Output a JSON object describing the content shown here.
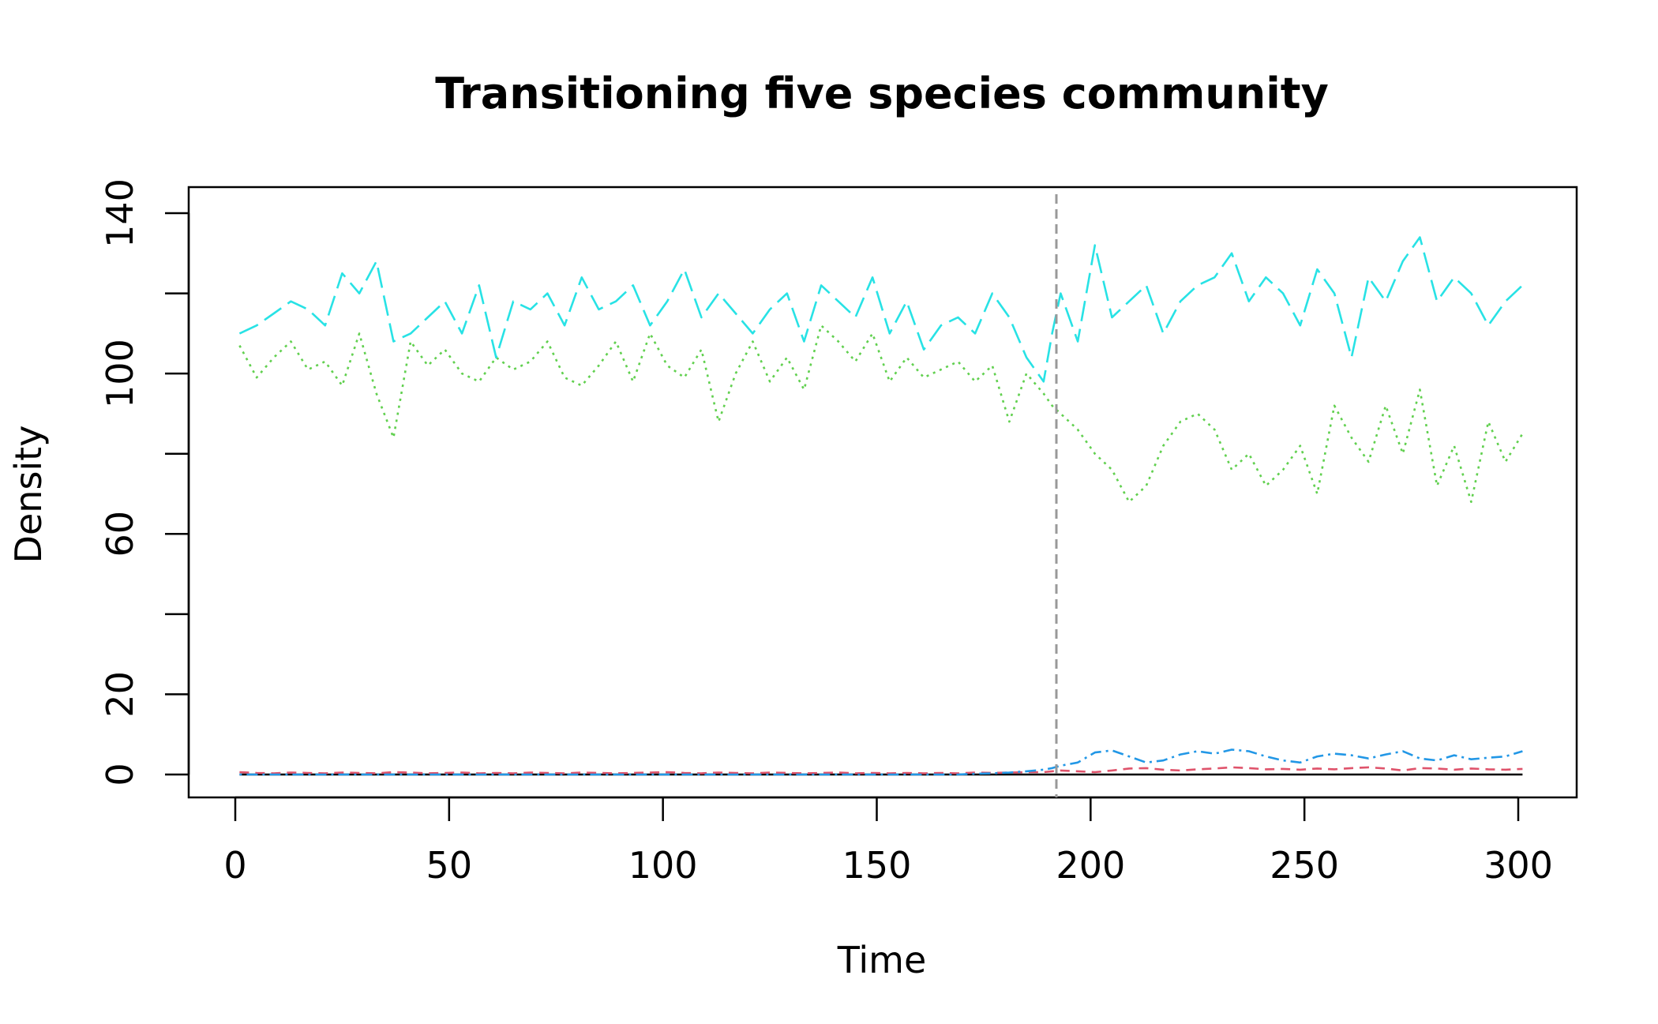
{
  "chart_data": {
    "type": "line",
    "title": "Transitioning five species community",
    "xlabel": "Time",
    "ylabel": "Density",
    "xlim": [
      0,
      300
    ],
    "ylim": [
      0,
      140
    ],
    "x_ticks": [
      0,
      50,
      100,
      150,
      200,
      250,
      300
    ],
    "y_ticks": [
      0,
      20,
      40,
      60,
      80,
      100,
      120,
      140
    ],
    "y_tick_labels": [
      "0",
      "20",
      "",
      "60",
      "",
      "100",
      "",
      "140"
    ],
    "grid": false,
    "legend": "none",
    "vline": {
      "x": 192,
      "color": "#999999",
      "style": "dashed"
    },
    "x": [
      1,
      5,
      9,
      13,
      17,
      21,
      25,
      29,
      33,
      37,
      41,
      45,
      49,
      53,
      57,
      61,
      65,
      69,
      73,
      77,
      81,
      85,
      89,
      93,
      97,
      101,
      105,
      109,
      113,
      117,
      121,
      125,
      129,
      133,
      137,
      141,
      145,
      149,
      153,
      157,
      161,
      165,
      169,
      173,
      177,
      181,
      185,
      189,
      191,
      193,
      197,
      201,
      205,
      209,
      213,
      217,
      221,
      225,
      229,
      233,
      237,
      241,
      245,
      249,
      253,
      257,
      261,
      265,
      269,
      273,
      277,
      281,
      285,
      289,
      293,
      297,
      301
    ],
    "series": [
      {
        "color": "#000000",
        "dash": "solid",
        "values": [
          0,
          0,
          0,
          0,
          0,
          0,
          0,
          0,
          0,
          0,
          0,
          0,
          0,
          0,
          0,
          0,
          0,
          0,
          0,
          0,
          0,
          0,
          0,
          0,
          0,
          0,
          0,
          0,
          0,
          0,
          0,
          0,
          0,
          0,
          0,
          0,
          0,
          0,
          0,
          0,
          0,
          0,
          0,
          0,
          0,
          0,
          0,
          0,
          0,
          0,
          0,
          0,
          0,
          0,
          0,
          0,
          0,
          0,
          0,
          0,
          0,
          0,
          0,
          0,
          0,
          0,
          0,
          0,
          0,
          0,
          0,
          0,
          0,
          0,
          0,
          0,
          0
        ]
      },
      {
        "color": "#DF536B",
        "dash": "dashed",
        "values": [
          0.6,
          0.4,
          0.3,
          0.5,
          0.4,
          0.3,
          0.5,
          0.4,
          0.3,
          0.6,
          0.5,
          0.3,
          0.4,
          0.5,
          0.3,
          0.4,
          0.3,
          0.5,
          0.4,
          0.3,
          0.5,
          0.4,
          0.3,
          0.4,
          0.5,
          0.6,
          0.4,
          0.3,
          0.5,
          0.4,
          0.3,
          0.5,
          0.4,
          0.3,
          0.4,
          0.5,
          0.3,
          0.4,
          0.3,
          0.4,
          0.3,
          0.4,
          0.3,
          0.5,
          0.4,
          0.5,
          0.6,
          0.6,
          0.8,
          1.0,
          0.8,
          0.6,
          1.0,
          1.5,
          1.6,
          1.2,
          1.0,
          1.3,
          1.5,
          1.8,
          1.6,
          1.3,
          1.4,
          1.2,
          1.5,
          1.3,
          1.6,
          1.8,
          1.5,
          1.0,
          1.6,
          1.5,
          1.2,
          1.5,
          1.3,
          1.2,
          1.4
        ]
      },
      {
        "color": "#61D04F",
        "dash": "dotted",
        "values": [
          107,
          99,
          104,
          108,
          101,
          103,
          97,
          110,
          95,
          84,
          108,
          102,
          106,
          100,
          98,
          104,
          101,
          103,
          108,
          99,
          97,
          102,
          108,
          98,
          110,
          102,
          99,
          106,
          88,
          100,
          108,
          98,
          104,
          96,
          112,
          108,
          103,
          110,
          98,
          104,
          99,
          101,
          103,
          98,
          102,
          88,
          100,
          95,
          92,
          90,
          86,
          80,
          76,
          68,
          72,
          82,
          88,
          90,
          86,
          76,
          80,
          72,
          76,
          82,
          70,
          92,
          84,
          78,
          92,
          80,
          96,
          72,
          82,
          68,
          88,
          78,
          85
        ]
      },
      {
        "color": "#2297E6",
        "dash": "dotdash",
        "values": [
          0,
          0,
          0,
          0,
          0,
          0,
          0,
          0,
          0,
          0,
          0,
          0,
          0,
          0,
          0,
          0,
          0,
          0,
          0,
          0,
          0,
          0,
          0,
          0,
          0,
          0,
          0,
          0,
          0,
          0,
          0,
          0,
          0,
          0,
          0,
          0,
          0,
          0,
          0,
          0,
          0,
          0,
          0,
          0.2,
          0.3,
          0.5,
          0.8,
          1.2,
          1.6,
          2.2,
          3.0,
          5.5,
          6.0,
          4.5,
          3.0,
          3.5,
          5.0,
          5.8,
          5.2,
          6.2,
          5.8,
          4.5,
          3.5,
          3.0,
          4.5,
          5.2,
          4.8,
          4.0,
          5.0,
          5.8,
          4.0,
          3.5,
          4.8,
          3.8,
          4.2,
          4.5,
          5.8
        ]
      },
      {
        "color": "#28E2E5",
        "dash": "longdash",
        "values": [
          110,
          112,
          115,
          118,
          116,
          112,
          125,
          120,
          128,
          108,
          110,
          114,
          118,
          110,
          122,
          104,
          118,
          116,
          120,
          112,
          124,
          116,
          118,
          122,
          112,
          118,
          126,
          114,
          120,
          115,
          110,
          116,
          120,
          108,
          122,
          118,
          114,
          124,
          110,
          118,
          106,
          112,
          114,
          110,
          120,
          114,
          104,
          98,
          110,
          120,
          108,
          132,
          114,
          118,
          122,
          110,
          118,
          122,
          124,
          130,
          118,
          124,
          120,
          112,
          126,
          120,
          104,
          124,
          118,
          128,
          134,
          118,
          124,
          120,
          112,
          118,
          122
        ]
      }
    ]
  }
}
